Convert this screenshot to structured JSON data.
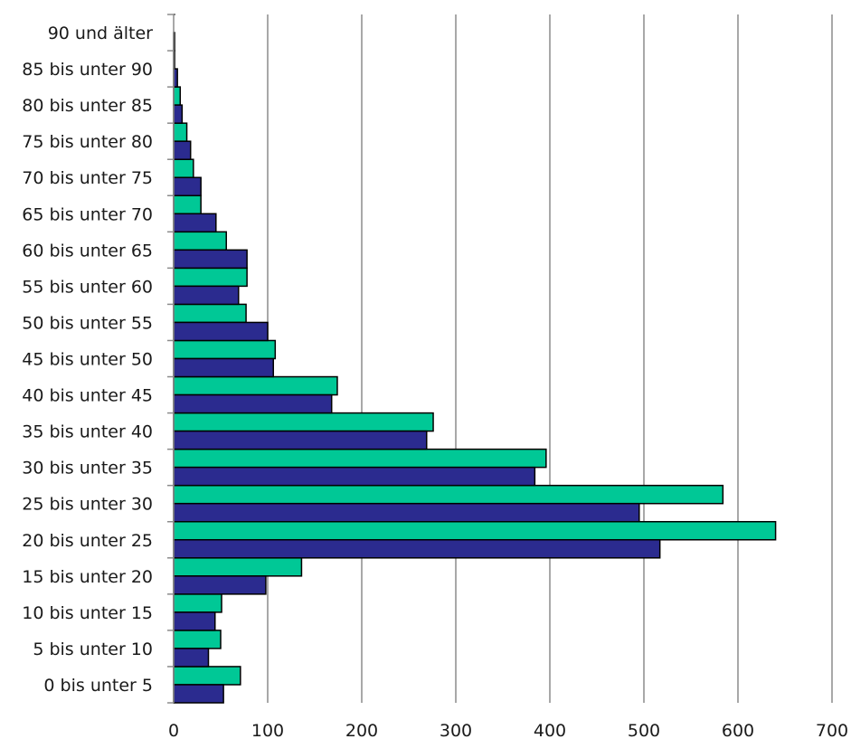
{
  "chart_data": {
    "type": "bar",
    "orientation": "horizontal",
    "categories": [
      "0 bis unter 5",
      "5 bis unter 10",
      "10 bis unter 15",
      "15 bis unter 20",
      "20 bis unter 25",
      "25 bis unter 30",
      "30 bis unter 35",
      "35 bis unter 40",
      "40 bis unter 45",
      "45 bis unter 50",
      "50 bis unter 55",
      "55 bis unter 60",
      "60 bis unter 65",
      "65 bis unter 70",
      "70 bis unter 75",
      "75 bis unter 80",
      "80 bis unter 85",
      "85 bis unter 90",
      "90 und älter"
    ],
    "series": [
      {
        "color": "#00c896",
        "values": [
          71,
          50,
          51,
          136,
          640,
          584,
          396,
          276,
          174,
          108,
          77,
          78,
          56,
          29,
          21,
          14,
          7,
          1,
          0
        ]
      },
      {
        "color": "#2b2b8f",
        "values": [
          53,
          37,
          44,
          98,
          517,
          495,
          384,
          269,
          168,
          106,
          100,
          69,
          78,
          45,
          29,
          18,
          9,
          4,
          1
        ]
      }
    ],
    "xlim": [
      0,
      700
    ],
    "xticks": [
      0,
      100,
      200,
      300,
      400,
      500,
      600,
      700
    ],
    "grid": true,
    "title": "",
    "xlabel": "",
    "ylabel": ""
  }
}
